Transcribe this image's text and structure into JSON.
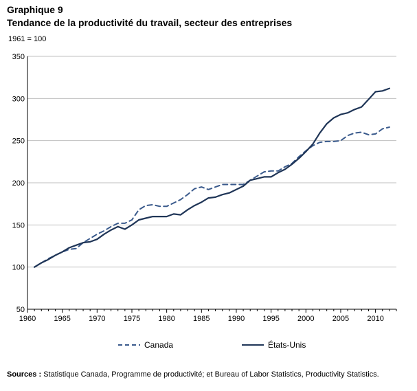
{
  "chart_data": {
    "type": "line",
    "title_line1": "Graphique 9",
    "title_line2": "Tendance de la productivité du travail, secteur des entreprises",
    "subtitle": "1961 = 100",
    "ylim": [
      50,
      350
    ],
    "yticks": [
      50,
      100,
      150,
      200,
      250,
      300,
      350
    ],
    "xlim": [
      1960,
      2013
    ],
    "xticks": [
      1960,
      1965,
      1970,
      1975,
      1980,
      1985,
      1990,
      1995,
      2000,
      2005,
      2010
    ],
    "grid": true,
    "legend_position": "bottom",
    "x": [
      1961,
      1962,
      1963,
      1964,
      1965,
      1966,
      1967,
      1968,
      1969,
      1970,
      1971,
      1972,
      1973,
      1974,
      1975,
      1976,
      1977,
      1978,
      1979,
      1980,
      1981,
      1982,
      1983,
      1984,
      1985,
      1986,
      1987,
      1988,
      1989,
      1990,
      1991,
      1992,
      1993,
      1994,
      1995,
      1996,
      1997,
      1998,
      1999,
      2000,
      2001,
      2002,
      2003,
      2004,
      2005,
      2006,
      2007,
      2008,
      2009,
      2010,
      2011,
      2012
    ],
    "series": [
      {
        "name": "Canada",
        "color": "#3a5a8c",
        "style": "dashed",
        "values": [
          100,
          105,
          110,
          114,
          118,
          121,
          122,
          129,
          134,
          139,
          143,
          148,
          152,
          152,
          156,
          168,
          173,
          174,
          172,
          172,
          176,
          180,
          186,
          193,
          195,
          192,
          195,
          198,
          198,
          198,
          198,
          203,
          208,
          213,
          214,
          214,
          219,
          223,
          231,
          238,
          244,
          248,
          249,
          249,
          250,
          256,
          259,
          260,
          257,
          258,
          264,
          266
        ]
      },
      {
        "name": "États-Unis",
        "color": "#1f3557",
        "style": "solid",
        "values": [
          100,
          105,
          109,
          114,
          118,
          123,
          126,
          129,
          130,
          133,
          139,
          144,
          148,
          145,
          150,
          156,
          158,
          160,
          160,
          160,
          163,
          162,
          168,
          173,
          177,
          182,
          183,
          186,
          188,
          192,
          196,
          203,
          205,
          207,
          207,
          212,
          216,
          222,
          229,
          237,
          246,
          259,
          270,
          277,
          281,
          283,
          287,
          290,
          299,
          308,
          309,
          312
        ]
      }
    ]
  },
  "legend": {
    "canada": "Canada",
    "usa": "États-Unis"
  },
  "sources": {
    "label": "Sources :",
    "text": " Statistique Canada, Programme de productivité; et Bureau of Labor Statistics, Productivity Statistics."
  }
}
